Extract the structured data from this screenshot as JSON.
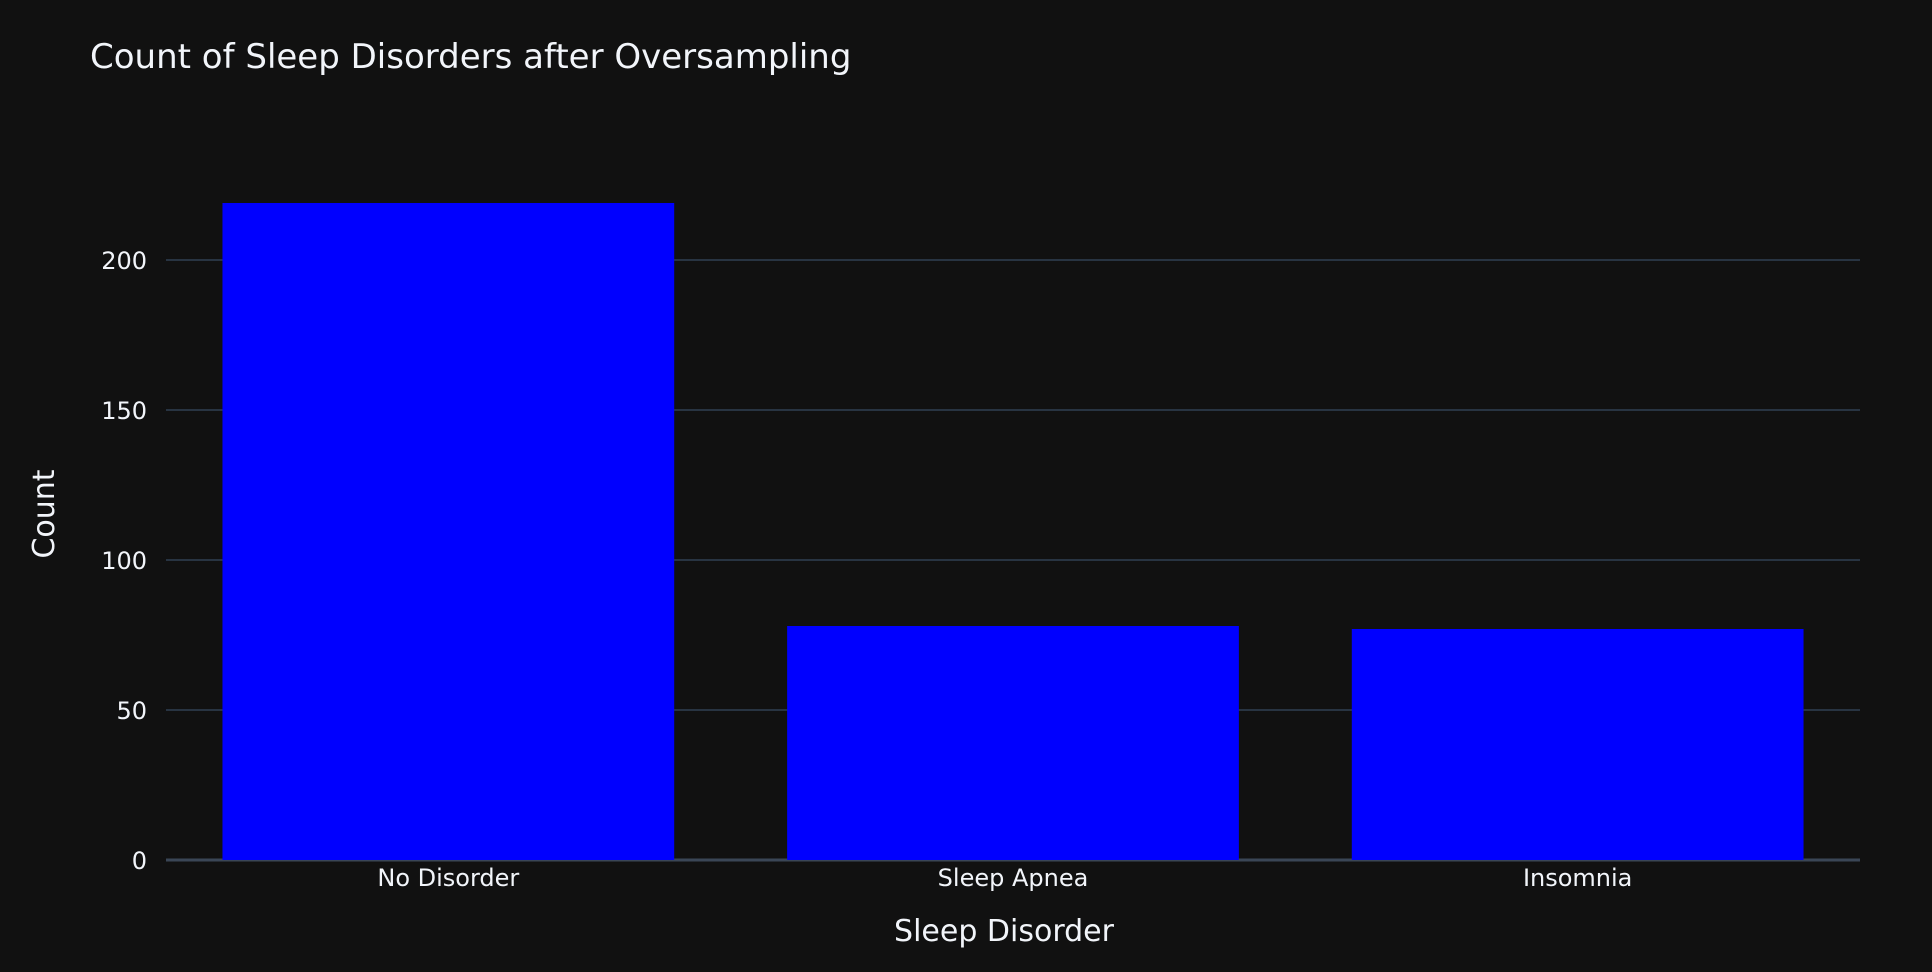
{
  "chart_data": {
    "type": "bar",
    "title": "Count of Sleep Disorders after Oversampling",
    "xlabel": "Sleep Disorder",
    "ylabel": "Count",
    "categories": [
      "No Disorder",
      "Sleep Apnea",
      "Insomnia"
    ],
    "values": [
      219,
      78,
      77
    ],
    "ylim": [
      0,
      230
    ],
    "yticks": [
      0,
      50,
      100,
      150,
      200
    ],
    "grid": true,
    "legend": "none",
    "colors": {
      "bar": "#0000ff",
      "background": "#111111",
      "grid": "#283442",
      "text": "#f2f5fa"
    }
  }
}
